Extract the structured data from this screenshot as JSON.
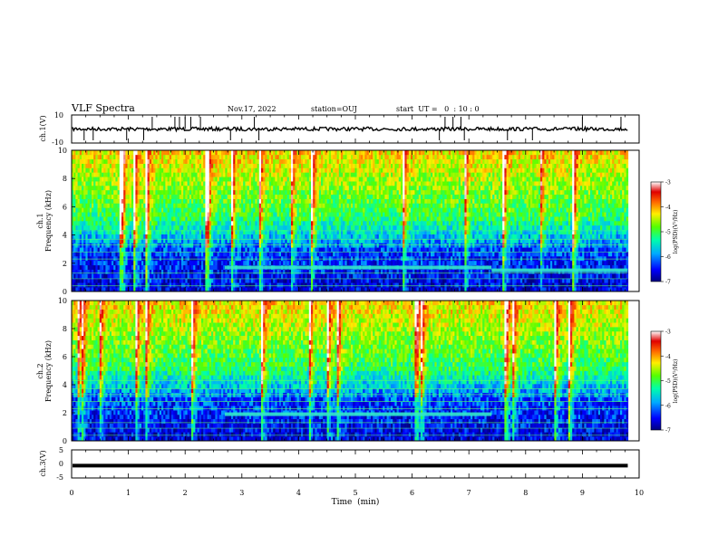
{
  "header": {
    "title": "VLF Spectra",
    "date": "Nov.17, 2022",
    "station": "station=OUJ",
    "start_ut": "start  UT =   0  : 10 : 0"
  },
  "chart_data": [
    {
      "type": "line",
      "panel": "ch1-waveform",
      "ylabel": "ch.1(V)",
      "ylim": [
        -10,
        10
      ],
      "yticks": [
        "10",
        "-10"
      ],
      "baseline": 0,
      "series": [
        {
          "values": [
            0,
            0
          ]
        }
      ],
      "spikes_min": [
        0.22,
        0.38,
        0.97,
        1.27,
        1.42,
        1.82,
        1.9,
        2.0,
        2.1,
        2.27,
        2.8,
        3.22,
        3.3,
        6.48,
        6.58,
        6.72,
        6.86,
        6.92,
        7.68,
        8.12,
        9.0,
        9.68
      ]
    },
    {
      "type": "heatmap",
      "panel": "ch1-spectrogram",
      "ylabel": "ch.1\nFrequency (kHz)",
      "ylim": [
        0,
        10
      ],
      "yticks": [
        "0",
        "2",
        "4",
        "6",
        "8",
        "10"
      ],
      "colorbar": {
        "label": "log(PSD)(V²/Hz)",
        "min": -7,
        "max": -3,
        "ticks": [
          "-3",
          "-4",
          "-5",
          "-6",
          "-7"
        ]
      },
      "tone_band_khz": [
        {
          "t0": 2.7,
          "t1": 7.4,
          "f": 1.7
        },
        {
          "t0": 7.4,
          "t1": 9.8,
          "f": 1.5
        }
      ]
    },
    {
      "type": "heatmap",
      "panel": "ch2-spectrogram",
      "ylabel": "ch.2\nFrequency (kHz)",
      "ylim": [
        0,
        10
      ],
      "yticks": [
        "0",
        "2",
        "4",
        "6",
        "8",
        "10"
      ],
      "colorbar": {
        "label": "log(PSD)(V²/Hz)",
        "min": -7,
        "max": -3,
        "ticks": [
          "-3",
          "-4",
          "-5",
          "-6",
          "-7"
        ]
      },
      "tone_band_khz": [
        {
          "t0": 2.7,
          "t1": 7.4,
          "f": 1.9
        }
      ]
    },
    {
      "type": "line",
      "panel": "ch3-waveform",
      "ylabel": "ch.3(V)",
      "ylim": [
        -5,
        5
      ],
      "yticks": [
        "5",
        "0",
        "-5"
      ],
      "series": [
        {
          "values": [
            -0.6,
            -0.6
          ]
        }
      ]
    }
  ],
  "x_axis": {
    "label": "Time  (min)",
    "xlim": [
      0,
      10
    ],
    "ticks": [
      "0",
      "1",
      "2",
      "3",
      "4",
      "5",
      "6",
      "7",
      "8",
      "9",
      "10"
    ],
    "data_end": 9.8
  },
  "colors": {
    "frame": "#000000",
    "colormap": [
      "#00007f",
      "#0000ff",
      "#00aaff",
      "#00ffaa",
      "#55ff00",
      "#ffee00",
      "#ff6600",
      "#e00000",
      "#ffffff"
    ]
  }
}
